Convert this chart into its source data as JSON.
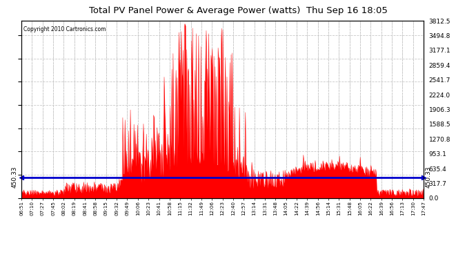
{
  "title": "Total PV Panel Power & Average Power (watts)  Thu Sep 16 18:05",
  "copyright": "Copyright 2010 Cartronics.com",
  "average_power": 450.33,
  "y_max": 3812.5,
  "y_min": 0.0,
  "y_ticks": [
    0.0,
    317.7,
    635.4,
    953.1,
    1270.8,
    1588.5,
    1906.3,
    2224.0,
    2541.7,
    2859.4,
    3177.1,
    3494.8,
    3812.5
  ],
  "avg_label": "450.33",
  "bg_color": "#ffffff",
  "plot_bg_color": "#ffffff",
  "grid_color": "#c8c8c8",
  "line_color": "#ff0000",
  "avg_line_color": "#0000cc",
  "title_color": "#000000",
  "border_color": "#000000",
  "x_tick_labels": [
    "06:51",
    "07:10",
    "07:27",
    "07:45",
    "08:02",
    "08:19",
    "08:41",
    "08:58",
    "09:15",
    "09:32",
    "09:49",
    "10:06",
    "10:23",
    "10:41",
    "10:58",
    "11:15",
    "11:32",
    "11:49",
    "12:06",
    "12:23",
    "12:40",
    "12:57",
    "13:14",
    "13:31",
    "13:48",
    "14:05",
    "14:22",
    "14:39",
    "14:56",
    "15:14",
    "15:31",
    "15:48",
    "16:05",
    "16:22",
    "16:39",
    "16:56",
    "17:13",
    "17:30",
    "17:47"
  ],
  "fig_width": 6.9,
  "fig_height": 3.75,
  "dpi": 100
}
